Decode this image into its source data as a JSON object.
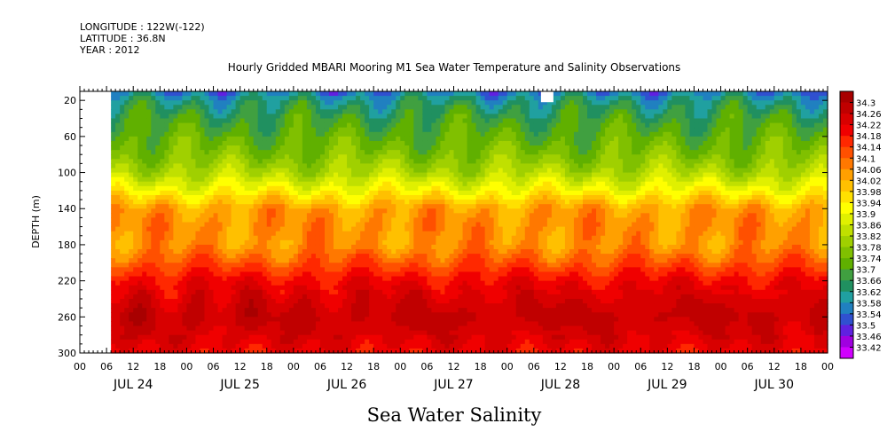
{
  "header": {
    "longitude": "LONGITUDE : 122W(-122)",
    "latitude": "LATITUDE : 36.8N",
    "year": "YEAR : 2012"
  },
  "chart_data": {
    "type": "heatmap",
    "title": "Hourly Gridded MBARI Mooring M1 Sea Water Temperature and Salinity Observations",
    "bottom_title": "Sea Water Salinity",
    "ylabel": "DEPTH (m)",
    "ylim": [
      300,
      10
    ],
    "y_ticks": [
      20,
      60,
      100,
      140,
      180,
      220,
      260,
      300
    ],
    "y_tick_labels": [
      "20",
      "60",
      "100",
      "140",
      "180",
      "220",
      "260",
      "300"
    ],
    "x_range_hours": [
      0,
      168
    ],
    "x_hour_labels": [
      "00",
      "06",
      "12",
      "18",
      "00",
      "06",
      "12",
      "18",
      "00",
      "06",
      "12",
      "18",
      "00",
      "06",
      "12",
      "18",
      "00",
      "06",
      "12",
      "18",
      "00",
      "06",
      "12",
      "18",
      "00",
      "06",
      "12",
      "18",
      "00"
    ],
    "x_day_labels": [
      "JUL 24",
      "JUL 25",
      "JUL 26",
      "JUL 27",
      "JUL 28",
      "JUL 29",
      "JUL 30"
    ],
    "colorbar": {
      "levels": [
        "34.3",
        "34.26",
        "34.22",
        "34.18",
        "34.14",
        "34.1",
        "34.06",
        "34.02",
        "33.98",
        "33.94",
        "33.9",
        "33.86",
        "33.82",
        "33.78",
        "33.74",
        "33.7",
        "33.66",
        "33.62",
        "33.58",
        "33.54",
        "33.5",
        "33.46",
        "33.42"
      ],
      "colors": [
        "#a80000",
        "#c00000",
        "#d80000",
        "#f00000",
        "#ff2800",
        "#ff5000",
        "#ff7800",
        "#ffa000",
        "#ffc000",
        "#ffe000",
        "#ffff00",
        "#e0f000",
        "#c0e000",
        "#a0d000",
        "#80c000",
        "#60b000",
        "#40a040",
        "#209060",
        "#20a0a0",
        "#2080c0",
        "#3050d0",
        "#6020e0",
        "#a000e0",
        "#d000ff"
      ]
    },
    "data_start_hour": 7,
    "missing_patch": {
      "hour": 105,
      "depth_top": 10,
      "depth_bottom": 22
    },
    "depth_profile": [
      {
        "depth": 10,
        "value": 33.55
      },
      {
        "depth": 20,
        "value": 33.62
      },
      {
        "depth": 40,
        "value": 33.68
      },
      {
        "depth": 60,
        "value": 33.72
      },
      {
        "depth": 80,
        "value": 33.76
      },
      {
        "depth": 100,
        "value": 33.82
      },
      {
        "depth": 120,
        "value": 33.92
      },
      {
        "depth": 140,
        "value": 34.04
      },
      {
        "depth": 160,
        "value": 34.06
      },
      {
        "depth": 180,
        "value": 34.05
      },
      {
        "depth": 200,
        "value": 34.12
      },
      {
        "depth": 220,
        "value": 34.2
      },
      {
        "depth": 240,
        "value": 34.24
      },
      {
        "depth": 260,
        "value": 34.27
      },
      {
        "depth": 280,
        "value": 34.24
      },
      {
        "depth": 300,
        "value": 34.2
      }
    ]
  }
}
